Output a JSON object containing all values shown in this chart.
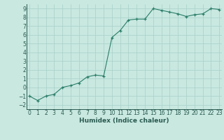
{
  "x": [
    0,
    1,
    2,
    3,
    4,
    5,
    6,
    7,
    8,
    9,
    10,
    11,
    12,
    13,
    14,
    15,
    16,
    17,
    18,
    19,
    20,
    21,
    22,
    23
  ],
  "y": [
    -1.0,
    -1.5,
    -1.0,
    -0.8,
    0.0,
    0.2,
    0.5,
    1.2,
    1.4,
    1.3,
    5.7,
    6.5,
    7.7,
    7.8,
    7.8,
    9.0,
    8.8,
    8.6,
    8.4,
    8.1,
    8.3,
    8.4,
    9.0,
    8.9
  ],
  "xlim": [
    -0.3,
    23.3
  ],
  "ylim": [
    -2.5,
    9.5
  ],
  "xticks": [
    0,
    1,
    2,
    3,
    4,
    5,
    6,
    7,
    8,
    9,
    10,
    11,
    12,
    13,
    14,
    15,
    16,
    17,
    18,
    19,
    20,
    21,
    22,
    23
  ],
  "yticks": [
    -2,
    -1,
    0,
    1,
    2,
    3,
    4,
    5,
    6,
    7,
    8,
    9
  ],
  "xlabel": "Humidex (Indice chaleur)",
  "line_color": "#2a7d68",
  "marker": "+",
  "bg_color": "#c8e8e0",
  "grid_color": "#a8d0c8",
  "tick_fontsize": 5.5,
  "label_fontsize": 6.5,
  "tick_color": "#2a5a50"
}
